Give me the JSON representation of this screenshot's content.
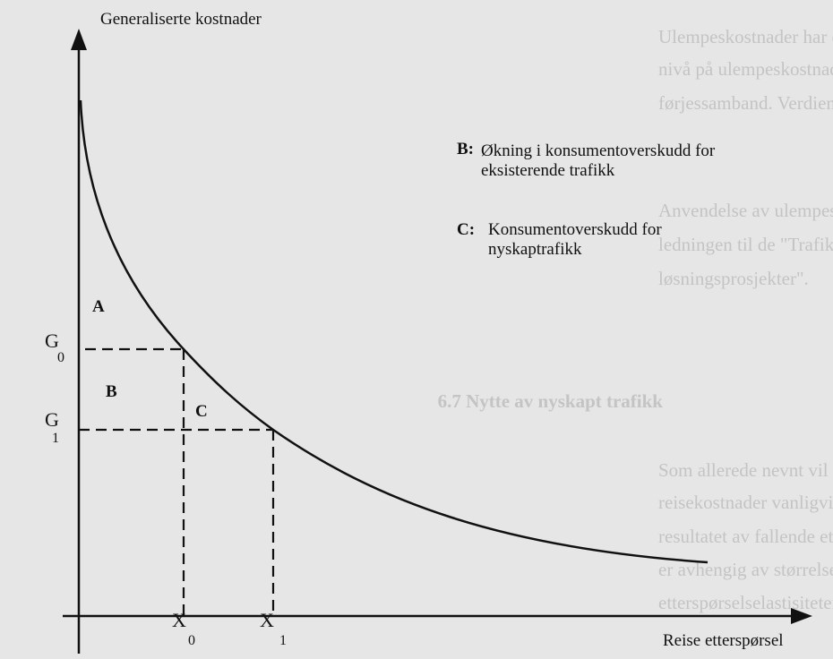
{
  "diagram": {
    "y_axis_label": "Generaliserte kostnader",
    "x_axis_label": "Reise etterspørsel",
    "levels": [
      {
        "letter": "G",
        "subscript": "0"
      },
      {
        "letter": "G",
        "subscript": "1"
      }
    ],
    "quantities": [
      {
        "letter": "X",
        "subscript": "0"
      },
      {
        "letter": "X",
        "subscript": "1"
      }
    ],
    "areas": [
      "A",
      "B",
      "C"
    ],
    "legend": [
      {
        "key": "B:",
        "lines": [
          "Økning i konsumentoverskudd for",
          "eksisterende trafikk"
        ]
      },
      {
        "key": "C:",
        "lines": [
          "Konsumentoverskudd for",
          "nyskaptrafikk"
        ]
      }
    ],
    "background_text": [
      "Ulempeskostnader har enhet kroner/personreise. Figur",
      "nivå på ulempeskostnader ved ulike reisehensikter og t",
      "førjessamband. Verdiene vil bli revidert når et større enh",
      "Anvendelse av ulempeskostnader i konsekvensanalyser b",
      "ledningen til de \"Trafikkberegning og samfunnsøkonom",
      "løsningsprosjekter\".",
      "6.7  Nytte av nyskapt trafikk",
      "Som allerede nevnt vil et tiltak som gir reduksjon i trafikk",
      "reisekostnader vanligvis gi en økning i reiseetterspørsel",
      "resultatet av fallende etterspørselskurve. Størrelsen på d",
      "er avhengig av størrelsen på reduksjonen i generalisert",
      "etterspørselselastisiteten, det vil si formen på etterspørs"
    ]
  }
}
